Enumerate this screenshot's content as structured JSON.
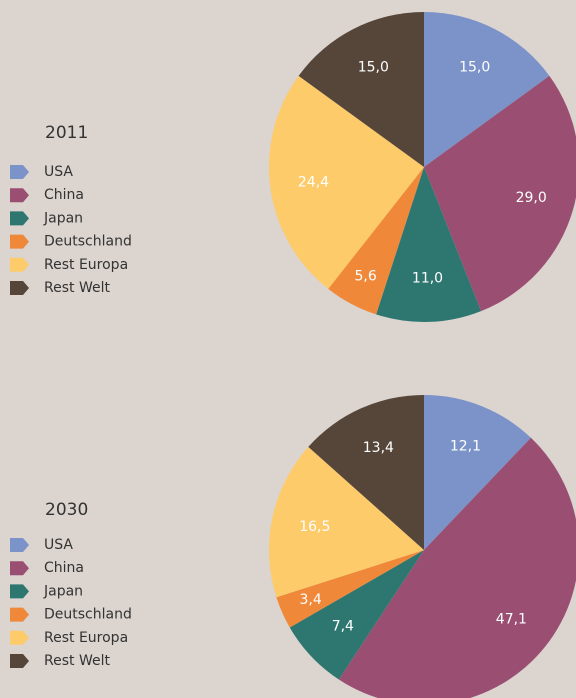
{
  "chart_data": [
    {
      "type": "pie",
      "title": "2011",
      "categories": [
        "USA",
        "China",
        "Japan",
        "Deutschland",
        "Rest Europa",
        "Rest Welt"
      ],
      "values": [
        15.0,
        29.0,
        11.0,
        5.6,
        24.4,
        15.0
      ],
      "value_labels": [
        "15,0",
        "29,0",
        "11,0",
        "5,6",
        "24,4",
        "15,0"
      ],
      "colors": [
        "#7b93c8",
        "#9a4f72",
        "#2e7770",
        "#f0883a",
        "#fecb6b",
        "#56463a"
      ]
    },
    {
      "type": "pie",
      "title": "2030",
      "categories": [
        "USA",
        "China",
        "Japan",
        "Deutschland",
        "Rest Europa",
        "Rest Welt"
      ],
      "values": [
        12.1,
        47.1,
        7.4,
        3.4,
        16.5,
        13.4
      ],
      "value_labels": [
        "12,1",
        "47,1",
        "7,4",
        "3,4",
        "16,5",
        "13,4"
      ],
      "colors": [
        "#7b93c8",
        "#9a4f72",
        "#2e7770",
        "#f0883a",
        "#fecb6b",
        "#56463a"
      ]
    }
  ]
}
